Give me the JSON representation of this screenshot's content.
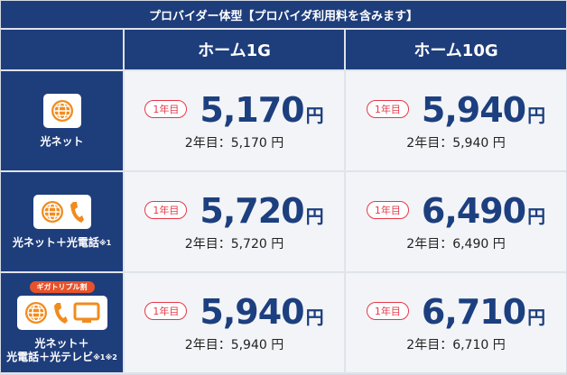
{
  "title": "プロバイダー体型【プロバイダ利用料を含みます】",
  "columns": [
    "ホーム1G",
    "ホーム10G"
  ],
  "rows": [
    {
      "label": [
        "光ネット"
      ],
      "cells": [
        {
          "badge": "1年目",
          "price": "5,170",
          "unit": "円",
          "year2": "2年目：5,170 円"
        },
        {
          "badge": "1年目",
          "price": "5,940",
          "unit": "円",
          "year2": "2年目：5,940 円"
        }
      ]
    },
    {
      "label": [
        "光ネット＋光電話"
      ],
      "note": "※1",
      "cells": [
        {
          "badge": "1年目",
          "price": "5,720",
          "unit": "円",
          "year2": "2年目：5,720 円"
        },
        {
          "badge": "1年目",
          "price": "6,490",
          "unit": "円",
          "year2": "2年目：6,490 円"
        }
      ]
    },
    {
      "label": [
        "光ネット＋",
        "光電話＋光テレビ"
      ],
      "note": "※1※2",
      "tag": "ギガトリプル割",
      "cells": [
        {
          "badge": "1年目",
          "price": "5,940",
          "unit": "円",
          "year2": "2年目：5,940 円"
        },
        {
          "badge": "1年目",
          "price": "6,710",
          "unit": "円",
          "year2": "2年目：6,710 円"
        }
      ]
    }
  ]
}
